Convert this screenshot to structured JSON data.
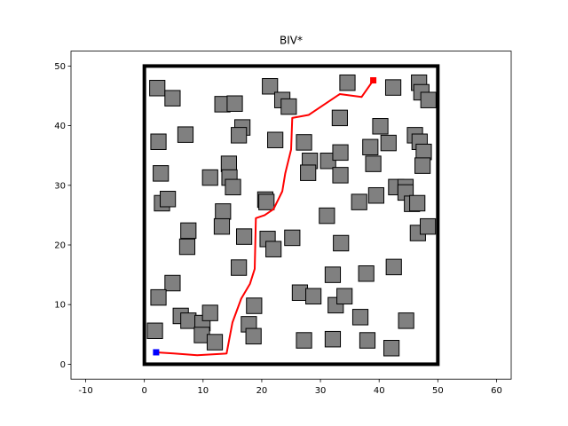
{
  "chart_data": {
    "type": "scatter",
    "title": "BIV*",
    "xlabel": "",
    "ylabel": "",
    "xlim": [
      -12.5,
      62.5
    ],
    "ylim": [
      -2.5,
      52.5
    ],
    "grid": false,
    "x_ticks": [
      -10,
      0,
      10,
      20,
      30,
      40,
      50,
      60
    ],
    "y_ticks": [
      0,
      10,
      20,
      30,
      40,
      50
    ],
    "boundary": {
      "x0": 0,
      "y0": 0,
      "x1": 50,
      "y1": 50,
      "color": "#000000"
    },
    "obstacle_size": 2.6,
    "obstacle_color": "#808080",
    "obstacles": [
      [
        2.2,
        46.3
      ],
      [
        4.8,
        44.6
      ],
      [
        2.4,
        37.3
      ],
      [
        7.0,
        38.5
      ],
      [
        2.8,
        32.0
      ],
      [
        3.0,
        27.0
      ],
      [
        4.0,
        27.7
      ],
      [
        7.5,
        22.4
      ],
      [
        7.3,
        19.7
      ],
      [
        4.8,
        13.6
      ],
      [
        2.4,
        11.2
      ],
      [
        1.8,
        5.6
      ],
      [
        6.2,
        8.1
      ],
      [
        7.5,
        7.3
      ],
      [
        9.9,
        6.9
      ],
      [
        9.8,
        4.9
      ],
      [
        11.2,
        8.6
      ],
      [
        12.0,
        3.7
      ],
      [
        13.3,
        43.6
      ],
      [
        15.4,
        43.7
      ],
      [
        16.7,
        39.7
      ],
      [
        16.1,
        38.4
      ],
      [
        14.4,
        33.6
      ],
      [
        14.5,
        31.3
      ],
      [
        15.1,
        29.7
      ],
      [
        11.2,
        31.3
      ],
      [
        13.4,
        25.6
      ],
      [
        13.2,
        23.1
      ],
      [
        17.0,
        21.4
      ],
      [
        16.1,
        16.2
      ],
      [
        18.7,
        9.8
      ],
      [
        17.8,
        6.7
      ],
      [
        18.6,
        4.7
      ],
      [
        21.4,
        46.6
      ],
      [
        23.5,
        44.3
      ],
      [
        24.6,
        43.2
      ],
      [
        22.3,
        37.6
      ],
      [
        20.6,
        27.6
      ],
      [
        20.8,
        27.2
      ],
      [
        21.0,
        21.0
      ],
      [
        22.0,
        19.3
      ],
      [
        25.2,
        21.2
      ],
      [
        26.5,
        12.0
      ],
      [
        28.8,
        11.4
      ],
      [
        27.2,
        4.0
      ],
      [
        27.2,
        37.2
      ],
      [
        28.2,
        34.1
      ],
      [
        27.9,
        32.1
      ],
      [
        31.3,
        34.1
      ],
      [
        33.4,
        35.5
      ],
      [
        33.4,
        31.7
      ],
      [
        33.3,
        41.3
      ],
      [
        34.6,
        47.2
      ],
      [
        31.1,
        24.9
      ],
      [
        33.5,
        20.3
      ],
      [
        32.1,
        15.0
      ],
      [
        32.6,
        9.9
      ],
      [
        34.1,
        11.4
      ],
      [
        32.1,
        4.2
      ],
      [
        36.6,
        27.2
      ],
      [
        38.5,
        36.4
      ],
      [
        39.0,
        33.6
      ],
      [
        39.5,
        28.3
      ],
      [
        40.2,
        39.9
      ],
      [
        41.6,
        37.1
      ],
      [
        42.4,
        46.4
      ],
      [
        42.9,
        29.7
      ],
      [
        44.5,
        29.7
      ],
      [
        44.5,
        28.8
      ],
      [
        46.1,
        38.4
      ],
      [
        46.9,
        37.3
      ],
      [
        47.6,
        35.6
      ],
      [
        47.4,
        33.3
      ],
      [
        46.8,
        47.2
      ],
      [
        47.2,
        45.6
      ],
      [
        48.4,
        44.3
      ],
      [
        45.6,
        26.9
      ],
      [
        46.5,
        27.0
      ],
      [
        46.6,
        22.0
      ],
      [
        48.3,
        23.1
      ],
      [
        37.8,
        15.2
      ],
      [
        36.8,
        7.9
      ],
      [
        38.0,
        4.0
      ],
      [
        42.5,
        16.3
      ],
      [
        44.6,
        7.3
      ],
      [
        42.1,
        2.7
      ]
    ],
    "path_color": "#ff0000",
    "path": [
      [
        2.0,
        2.0
      ],
      [
        5.0,
        1.8
      ],
      [
        9.0,
        1.5
      ],
      [
        14.0,
        1.8
      ],
      [
        15.0,
        7.0
      ],
      [
        16.5,
        11.0
      ],
      [
        18.0,
        13.5
      ],
      [
        18.8,
        16.0
      ],
      [
        19.0,
        24.5
      ],
      [
        20.5,
        25.0
      ],
      [
        22.0,
        26.0
      ],
      [
        23.5,
        29.0
      ],
      [
        24.0,
        32.0
      ],
      [
        25.0,
        36.0
      ],
      [
        25.2,
        41.3
      ],
      [
        28.0,
        41.8
      ],
      [
        33.3,
        45.3
      ],
      [
        37.0,
        44.8
      ],
      [
        39.0,
        47.6
      ]
    ],
    "start": {
      "x": 2.0,
      "y": 2.0,
      "color": "#0000ff"
    },
    "goal": {
      "x": 39.0,
      "y": 47.6,
      "color": "#ff0000"
    }
  }
}
